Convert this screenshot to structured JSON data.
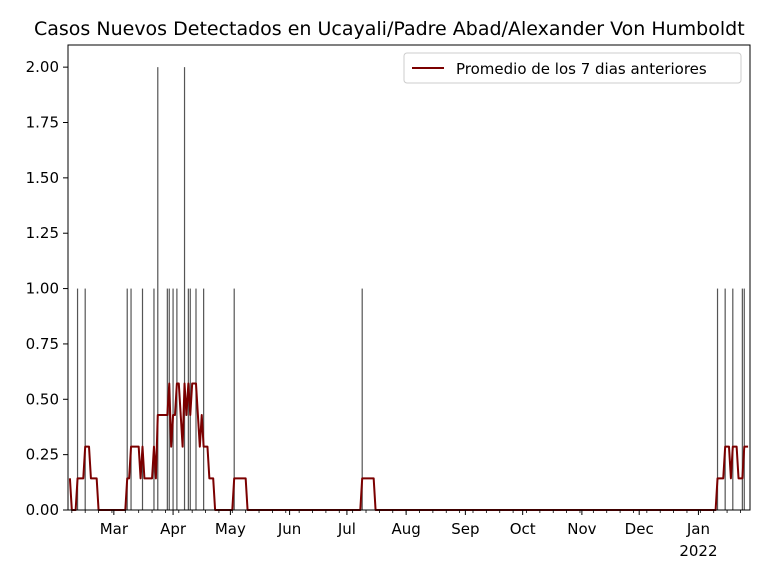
{
  "chart_data": {
    "type": "bar",
    "title": "Casos Nuevos Detectados en Ucayali/Padre Abad/Alexander Von Humboldt",
    "xlabel": "",
    "ylabel": "",
    "x_range": [
      "2021-02-05",
      "2022-01-28"
    ],
    "ylim": [
      0,
      2.1
    ],
    "y_ticks": [
      0.0,
      0.25,
      0.5,
      0.75,
      1.0,
      1.25,
      1.5,
      1.75,
      2.0
    ],
    "y_tick_labels": [
      "0.00",
      "0.25",
      "0.50",
      "0.75",
      "1.00",
      "1.25",
      "1.50",
      "1.75",
      "2.00"
    ],
    "x_ticks": [
      {
        "date": "2021-03-01",
        "label": "Mar"
      },
      {
        "date": "2021-04-01",
        "label": "Apr"
      },
      {
        "date": "2021-05-01",
        "label": "May"
      },
      {
        "date": "2021-06-01",
        "label": "Jun"
      },
      {
        "date": "2021-07-01",
        "label": "Jul"
      },
      {
        "date": "2021-08-01",
        "label": "Aug"
      },
      {
        "date": "2021-09-01",
        "label": "Sep"
      },
      {
        "date": "2021-10-01",
        "label": "Oct"
      },
      {
        "date": "2021-11-01",
        "label": "Nov"
      },
      {
        "date": "2021-12-01",
        "label": "Dec"
      },
      {
        "date": "2022-01-01",
        "label": "Jan",
        "sublabel": "2022"
      }
    ],
    "grid": false,
    "legend_position": "upper right",
    "series": [
      {
        "name": "",
        "kind": "bar",
        "color": "#555555",
        "points": [
          {
            "x": "2021-02-10",
            "y": 1
          },
          {
            "x": "2021-02-14",
            "y": 1
          },
          {
            "x": "2021-03-08",
            "y": 1
          },
          {
            "x": "2021-03-10",
            "y": 1
          },
          {
            "x": "2021-03-16",
            "y": 1
          },
          {
            "x": "2021-03-22",
            "y": 1
          },
          {
            "x": "2021-03-24",
            "y": 2
          },
          {
            "x": "2021-03-29",
            "y": 1
          },
          {
            "x": "2021-03-30",
            "y": 1
          },
          {
            "x": "2021-04-01",
            "y": 1
          },
          {
            "x": "2021-04-03",
            "y": 1
          },
          {
            "x": "2021-04-07",
            "y": 2
          },
          {
            "x": "2021-04-09",
            "y": 1
          },
          {
            "x": "2021-04-10",
            "y": 1
          },
          {
            "x": "2021-04-13",
            "y": 1
          },
          {
            "x": "2021-04-17",
            "y": 1
          },
          {
            "x": "2021-05-03",
            "y": 1
          },
          {
            "x": "2021-07-09",
            "y": 1
          },
          {
            "x": "2022-01-11",
            "y": 1
          },
          {
            "x": "2022-01-15",
            "y": 1
          },
          {
            "x": "2022-01-19",
            "y": 1
          },
          {
            "x": "2022-01-24",
            "y": 1
          },
          {
            "x": "2022-01-25",
            "y": 1
          }
        ]
      },
      {
        "name": "Promedio de los 7 dias anteriores",
        "kind": "line",
        "color": "#7b0000",
        "points": [
          {
            "x": "2021-02-06",
            "y": 0.143
          },
          {
            "x": "2021-02-07",
            "y": 0.0
          },
          {
            "x": "2021-02-08",
            "y": 0.0
          },
          {
            "x": "2021-02-09",
            "y": 0.0
          },
          {
            "x": "2021-02-10",
            "y": 0.143
          },
          {
            "x": "2021-02-13",
            "y": 0.143
          },
          {
            "x": "2021-02-14",
            "y": 0.286
          },
          {
            "x": "2021-02-16",
            "y": 0.286
          },
          {
            "x": "2021-02-17",
            "y": 0.143
          },
          {
            "x": "2021-02-20",
            "y": 0.143
          },
          {
            "x": "2021-02-21",
            "y": 0.0
          },
          {
            "x": "2021-03-07",
            "y": 0.0
          },
          {
            "x": "2021-03-08",
            "y": 0.143
          },
          {
            "x": "2021-03-09",
            "y": 0.143
          },
          {
            "x": "2021-03-10",
            "y": 0.286
          },
          {
            "x": "2021-03-14",
            "y": 0.286
          },
          {
            "x": "2021-03-15",
            "y": 0.143
          },
          {
            "x": "2021-03-16",
            "y": 0.286
          },
          {
            "x": "2021-03-17",
            "y": 0.143
          },
          {
            "x": "2021-03-21",
            "y": 0.143
          },
          {
            "x": "2021-03-22",
            "y": 0.286
          },
          {
            "x": "2021-03-23",
            "y": 0.143
          },
          {
            "x": "2021-03-24",
            "y": 0.429
          },
          {
            "x": "2021-03-29",
            "y": 0.429
          },
          {
            "x": "2021-03-30",
            "y": 0.571
          },
          {
            "x": "2021-03-31",
            "y": 0.286
          },
          {
            "x": "2021-04-01",
            "y": 0.429
          },
          {
            "x": "2021-04-02",
            "y": 0.429
          },
          {
            "x": "2021-04-03",
            "y": 0.571
          },
          {
            "x": "2021-04-04",
            "y": 0.571
          },
          {
            "x": "2021-04-05",
            "y": 0.429
          },
          {
            "x": "2021-04-06",
            "y": 0.286
          },
          {
            "x": "2021-04-07",
            "y": 0.571
          },
          {
            "x": "2021-04-08",
            "y": 0.429
          },
          {
            "x": "2021-04-09",
            "y": 0.571
          },
          {
            "x": "2021-04-10",
            "y": 0.429
          },
          {
            "x": "2021-04-11",
            "y": 0.571
          },
          {
            "x": "2021-04-13",
            "y": 0.571
          },
          {
            "x": "2021-04-14",
            "y": 0.429
          },
          {
            "x": "2021-04-15",
            "y": 0.286
          },
          {
            "x": "2021-04-16",
            "y": 0.429
          },
          {
            "x": "2021-04-17",
            "y": 0.286
          },
          {
            "x": "2021-04-19",
            "y": 0.286
          },
          {
            "x": "2021-04-20",
            "y": 0.143
          },
          {
            "x": "2021-04-22",
            "y": 0.143
          },
          {
            "x": "2021-04-23",
            "y": 0.0
          },
          {
            "x": "2021-05-02",
            "y": 0.0
          },
          {
            "x": "2021-05-03",
            "y": 0.143
          },
          {
            "x": "2021-05-09",
            "y": 0.143
          },
          {
            "x": "2021-05-10",
            "y": 0.0
          },
          {
            "x": "2021-07-08",
            "y": 0.0
          },
          {
            "x": "2021-07-09",
            "y": 0.143
          },
          {
            "x": "2021-07-15",
            "y": 0.143
          },
          {
            "x": "2021-07-16",
            "y": 0.0
          },
          {
            "x": "2022-01-10",
            "y": 0.0
          },
          {
            "x": "2022-01-11",
            "y": 0.143
          },
          {
            "x": "2022-01-14",
            "y": 0.143
          },
          {
            "x": "2022-01-15",
            "y": 0.286
          },
          {
            "x": "2022-01-17",
            "y": 0.286
          },
          {
            "x": "2022-01-18",
            "y": 0.143
          },
          {
            "x": "2022-01-19",
            "y": 0.286
          },
          {
            "x": "2022-01-21",
            "y": 0.286
          },
          {
            "x": "2022-01-22",
            "y": 0.143
          },
          {
            "x": "2022-01-24",
            "y": 0.143
          },
          {
            "x": "2022-01-25",
            "y": 0.286
          },
          {
            "x": "2022-01-27",
            "y": 0.286
          }
        ]
      }
    ]
  }
}
